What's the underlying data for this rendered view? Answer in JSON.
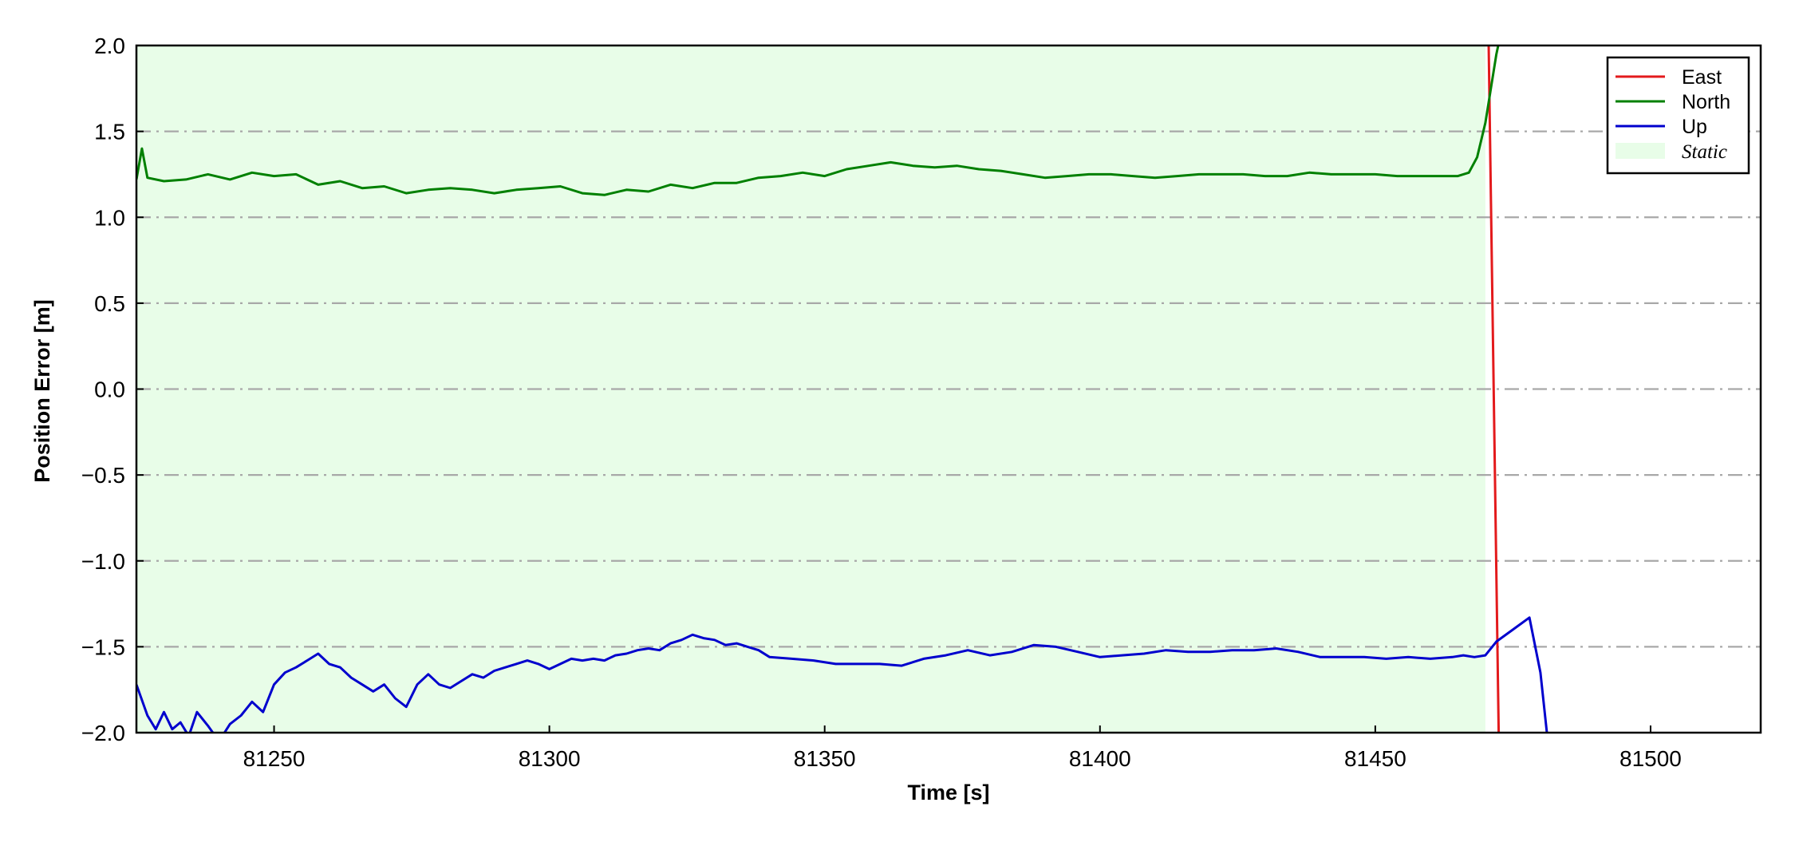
{
  "chart_data": {
    "type": "line",
    "xlabel": "Time [s]",
    "ylabel": "Position Error [m]",
    "xlim": [
      81225,
      81520
    ],
    "ylim": [
      -2.0,
      2.0
    ],
    "xticks": [
      81250,
      81300,
      81350,
      81400,
      81450,
      81500
    ],
    "xtick_labels": [
      "81250",
      "81300",
      "81350",
      "81400",
      "81450",
      "81500"
    ],
    "yticks": [
      2.0,
      1.5,
      1.0,
      0.5,
      0.0,
      -0.5,
      -1.0,
      -1.5,
      -2.0
    ],
    "ytick_labels": [
      "2.0",
      "1.5",
      "1.0",
      "0.5",
      "0.0",
      "−0.5",
      "−1.0",
      "−1.5",
      "−2.0"
    ],
    "grid": "horizontal dash-dot",
    "legend_position": "top-right",
    "static_region": {
      "label": "Static",
      "x_start": 81225,
      "x_end": 81470,
      "color": "#e8fde8"
    },
    "series": [
      {
        "name": "East",
        "color": "#e31a1c",
        "x": [
          81470.5,
          81472.5
        ],
        "y": [
          2.2,
          -2.2
        ]
      },
      {
        "name": "North",
        "color": "#008000",
        "x": [
          81225,
          81226,
          81227,
          81230,
          81234,
          81238,
          81242,
          81246,
          81250,
          81254,
          81258,
          81262,
          81266,
          81270,
          81274,
          81278,
          81282,
          81286,
          81290,
          81294,
          81298,
          81302,
          81306,
          81310,
          81314,
          81318,
          81322,
          81326,
          81330,
          81334,
          81338,
          81342,
          81346,
          81350,
          81354,
          81358,
          81362,
          81366,
          81370,
          81374,
          81378,
          81382,
          81386,
          81390,
          81394,
          81398,
          81402,
          81406,
          81410,
          81414,
          81418,
          81422,
          81426,
          81430,
          81434,
          81438,
          81442,
          81446,
          81450,
          81454,
          81458,
          81462,
          81465,
          81467,
          81468.5,
          81470,
          81471,
          81472,
          81473
        ],
        "y": [
          1.22,
          1.4,
          1.23,
          1.21,
          1.22,
          1.25,
          1.22,
          1.26,
          1.24,
          1.25,
          1.19,
          1.21,
          1.17,
          1.18,
          1.14,
          1.16,
          1.17,
          1.16,
          1.14,
          1.16,
          1.17,
          1.18,
          1.14,
          1.13,
          1.16,
          1.15,
          1.19,
          1.17,
          1.2,
          1.2,
          1.23,
          1.24,
          1.26,
          1.24,
          1.28,
          1.3,
          1.32,
          1.3,
          1.29,
          1.3,
          1.28,
          1.27,
          1.25,
          1.23,
          1.24,
          1.25,
          1.25,
          1.24,
          1.23,
          1.24,
          1.25,
          1.25,
          1.25,
          1.24,
          1.24,
          1.26,
          1.25,
          1.25,
          1.25,
          1.24,
          1.24,
          1.24,
          1.24,
          1.26,
          1.35,
          1.55,
          1.75,
          1.95,
          2.1
        ]
      },
      {
        "name": "Up",
        "color": "#0000cd",
        "x": [
          81225,
          81227,
          81228.5,
          81230,
          81231.5,
          81233,
          81234.5,
          81236,
          81238,
          81240,
          81242,
          81244,
          81246,
          81248,
          81250,
          81252,
          81254,
          81256,
          81258,
          81260,
          81262,
          81264,
          81266,
          81268,
          81270,
          81272,
          81274,
          81276,
          81278,
          81280,
          81282,
          81284,
          81286,
          81288,
          81290,
          81292,
          81294,
          81296,
          81298,
          81300,
          81302,
          81304,
          81306,
          81308,
          81310,
          81312,
          81314,
          81316,
          81318,
          81320,
          81322,
          81324,
          81326,
          81328,
          81330,
          81332,
          81334,
          81336,
          81338,
          81340,
          81344,
          81348,
          81352,
          81356,
          81360,
          81364,
          81368,
          81372,
          81376,
          81380,
          81384,
          81388,
          81392,
          81396,
          81400,
          81404,
          81408,
          81412,
          81416,
          81420,
          81424,
          81428,
          81432,
          81436,
          81440,
          81444,
          81448,
          81452,
          81456,
          81460,
          81464,
          81466,
          81468,
          81470,
          81472,
          81475,
          81478,
          81480,
          81481.5
        ],
        "y": [
          -1.72,
          -1.9,
          -1.98,
          -1.88,
          -1.98,
          -1.94,
          -2.02,
          -1.88,
          -1.96,
          -2.05,
          -1.95,
          -1.9,
          -1.82,
          -1.88,
          -1.72,
          -1.65,
          -1.62,
          -1.58,
          -1.54,
          -1.6,
          -1.62,
          -1.68,
          -1.72,
          -1.76,
          -1.72,
          -1.8,
          -1.85,
          -1.72,
          -1.66,
          -1.72,
          -1.74,
          -1.7,
          -1.66,
          -1.68,
          -1.64,
          -1.62,
          -1.6,
          -1.58,
          -1.6,
          -1.63,
          -1.6,
          -1.57,
          -1.58,
          -1.57,
          -1.58,
          -1.55,
          -1.54,
          -1.52,
          -1.51,
          -1.52,
          -1.48,
          -1.46,
          -1.43,
          -1.45,
          -1.46,
          -1.49,
          -1.48,
          -1.5,
          -1.52,
          -1.56,
          -1.57,
          -1.58,
          -1.6,
          -1.6,
          -1.6,
          -1.61,
          -1.57,
          -1.55,
          -1.52,
          -1.55,
          -1.53,
          -1.49,
          -1.5,
          -1.53,
          -1.56,
          -1.55,
          -1.54,
          -1.52,
          -1.53,
          -1.53,
          -1.52,
          -1.52,
          -1.51,
          -1.53,
          -1.56,
          -1.56,
          -1.56,
          -1.57,
          -1.56,
          -1.57,
          -1.56,
          -1.55,
          -1.56,
          -1.55,
          -1.47,
          -1.4,
          -1.33,
          -1.65,
          -2.1
        ]
      }
    ]
  }
}
